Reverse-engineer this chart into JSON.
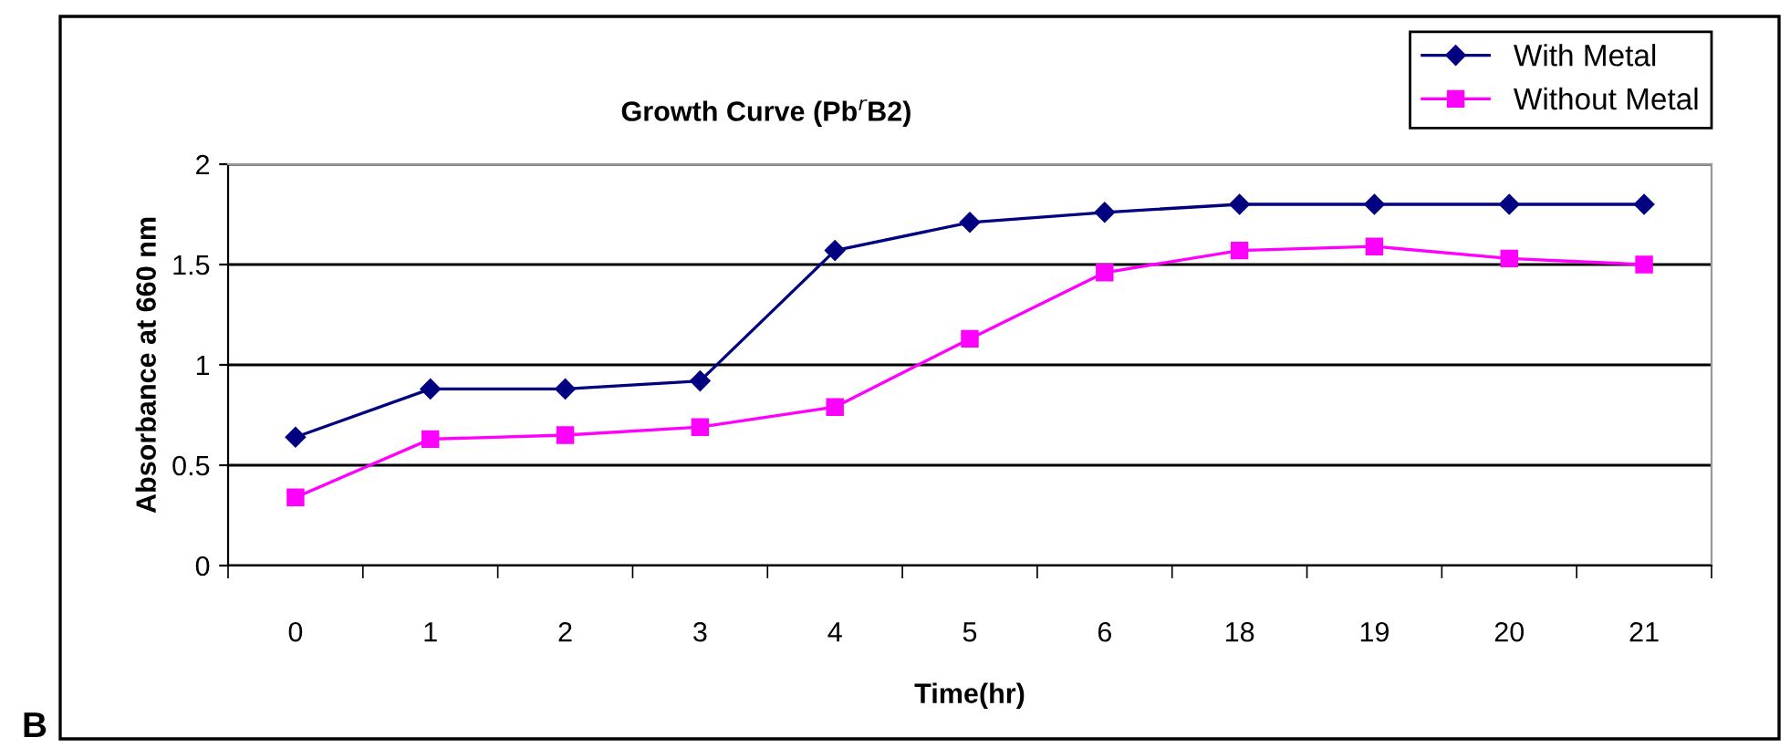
{
  "chart_data": {
    "type": "line",
    "title": "Growth Curve (Pb$^{r}$B2)",
    "xlabel": "Time(hr)",
    "ylabel": "Absorbance at 660 nm",
    "annotations": [
      "B"
    ],
    "categories": [
      "0",
      "1",
      "2",
      "3",
      "4",
      "5",
      "6",
      "18",
      "19",
      "20",
      "21"
    ],
    "series": [
      {
        "name": "With Metal",
        "color": "#000080",
        "marker": "diamond",
        "values": [
          0.64,
          0.88,
          0.88,
          0.92,
          1.57,
          1.71,
          1.76,
          1.8,
          1.8,
          1.8,
          1.8
        ]
      },
      {
        "name": "Without Metal",
        "color": "#ff00ff",
        "marker": "square",
        "values": [
          0.34,
          0.63,
          0.65,
          0.69,
          0.79,
          1.13,
          1.46,
          1.57,
          1.59,
          1.53,
          1.5
        ]
      }
    ],
    "ylim": [
      0,
      2
    ],
    "yticks": [
      0,
      0.5,
      1,
      1.5,
      2
    ],
    "grid": "y",
    "legend": "top right",
    "line_style": "solid"
  }
}
